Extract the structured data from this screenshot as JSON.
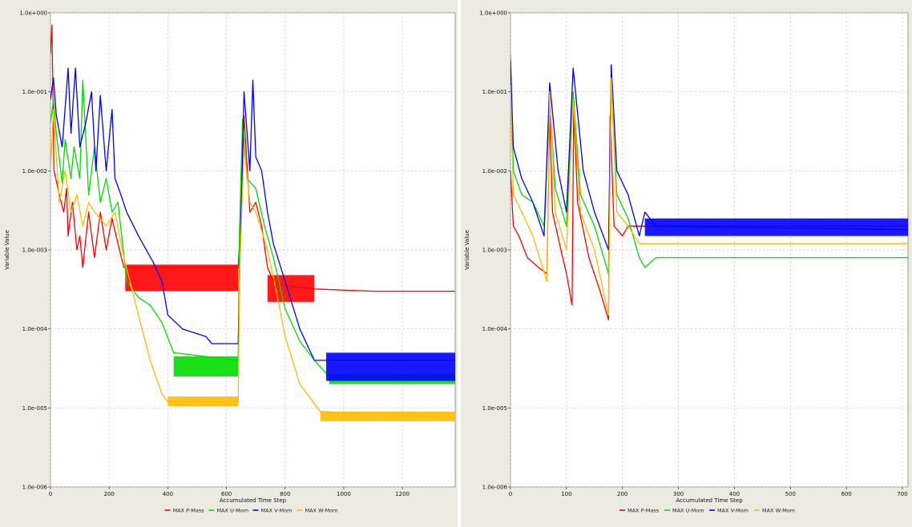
{
  "colors": {
    "frame": "#ecebe1",
    "plot_bg": "#ffffff",
    "grid": "#c4c4c4",
    "p_mass": "#ff0000",
    "u_mom": "#00dd00",
    "v_mom": "#0000ff",
    "w_mom": "#ffbb00"
  },
  "chart_data": [
    {
      "type": "line",
      "title": "",
      "xlabel": "Accumulated Time Step",
      "ylabel": "Variable Value",
      "yscale": "log",
      "ylim": [
        1e-06,
        1
      ],
      "xlim": [
        0,
        1380
      ],
      "xticks": [
        0,
        200,
        400,
        600,
        800,
        1000,
        1200
      ],
      "yticks": [
        1,
        0.1,
        0.01,
        0.001,
        0.0001,
        1e-05,
        1e-06
      ],
      "ytick_labels": [
        "1.0e+000",
        "1.0e-001",
        "1.0e-002",
        "1.0e-003",
        "1.0e-004",
        "1.0e-005",
        "1.0e-006"
      ],
      "grid": true,
      "legend_position": "bottom",
      "series": [
        {
          "name": "MAX P-Mass",
          "color_key": "p_mass",
          "points": [
            [
              0,
              0.3
            ],
            [
              5,
              0.7
            ],
            [
              12,
              0.01
            ],
            [
              30,
              0.005
            ],
            [
              45,
              0.003
            ],
            [
              55,
              0.006
            ],
            [
              60,
              0.0015
            ],
            [
              75,
              0.004
            ],
            [
              90,
              0.001
            ],
            [
              100,
              0.0015
            ],
            [
              110,
              0.0006
            ],
            [
              130,
              0.003
            ],
            [
              150,
              0.0008
            ],
            [
              170,
              0.003
            ],
            [
              190,
              0.001
            ],
            [
              210,
              0.0025
            ],
            [
              230,
              0.0012
            ],
            [
              250,
              0.0006
            ],
            [
              640,
              0.0006
            ],
            [
              650,
              0.003
            ],
            [
              660,
              0.05
            ],
            [
              680,
              0.003
            ],
            [
              700,
              0.004
            ],
            [
              720,
              0.002
            ],
            [
              740,
              0.0006
            ],
            [
              760,
              0.0004
            ],
            [
              800,
              0.00035
            ],
            [
              900,
              0.00032
            ],
            [
              1100,
              0.0003
            ],
            [
              1380,
              0.0003
            ]
          ],
          "bands": [
            {
              "x": [
                255,
                640
              ],
              "y": [
                0.0003,
                0.00065
              ]
            },
            {
              "x": [
                740,
                900
              ],
              "y": [
                0.00022,
                0.00048
              ]
            }
          ]
        },
        {
          "name": "MAX U-Mom",
          "color_key": "u_mom",
          "points": [
            [
              0,
              0.04
            ],
            [
              10,
              0.08
            ],
            [
              20,
              0.03
            ],
            [
              40,
              0.007
            ],
            [
              50,
              0.025
            ],
            [
              70,
              0.008
            ],
            [
              80,
              0.02
            ],
            [
              100,
              0.008
            ],
            [
              110,
              0.14
            ],
            [
              130,
              0.005
            ],
            [
              150,
              0.02
            ],
            [
              170,
              0.004
            ],
            [
              190,
              0.008
            ],
            [
              210,
              0.003
            ],
            [
              230,
              0.004
            ],
            [
              260,
              0.0004
            ],
            [
              300,
              0.00025
            ],
            [
              340,
              0.0002
            ],
            [
              380,
              0.00012
            ],
            [
              420,
              5e-05
            ],
            [
              640,
              4e-05
            ],
            [
              645,
              0.002
            ],
            [
              655,
              0.045
            ],
            [
              670,
              0.008
            ],
            [
              700,
              0.006
            ],
            [
              730,
              0.002
            ],
            [
              760,
              0.0008
            ],
            [
              800,
              0.00018
            ],
            [
              850,
              7e-05
            ],
            [
              900,
              4e-05
            ],
            [
              950,
              2.5e-05
            ],
            [
              1380,
              2.5e-05
            ]
          ],
          "bands": [
            {
              "x": [
                420,
                640
              ],
              "y": [
                2.5e-05,
                4.5e-05
              ]
            },
            {
              "x": [
                950,
                1380
              ],
              "y": [
                2e-05,
                2.7e-05
              ]
            }
          ]
        },
        {
          "name": "MAX V-Mom",
          "color_key": "v_mom",
          "points": [
            [
              0,
              0.08
            ],
            [
              10,
              0.15
            ],
            [
              20,
              0.05
            ],
            [
              40,
              0.02
            ],
            [
              60,
              0.2
            ],
            [
              70,
              0.03
            ],
            [
              85,
              0.2
            ],
            [
              100,
              0.02
            ],
            [
              120,
              0.04
            ],
            [
              140,
              0.1
            ],
            [
              155,
              0.01
            ],
            [
              170,
              0.09
            ],
            [
              190,
              0.01
            ],
            [
              210,
              0.06
            ],
            [
              220,
              0.008
            ],
            [
              240,
              0.005
            ],
            [
              260,
              0.003
            ],
            [
              300,
              0.0015
            ],
            [
              350,
              0.0007
            ],
            [
              380,
              0.0004
            ],
            [
              400,
              0.00015
            ],
            [
              450,
              0.0001
            ],
            [
              530,
              8e-05
            ],
            [
              550,
              6.5e-05
            ],
            [
              640,
              6.5e-05
            ],
            [
              650,
              0.003
            ],
            [
              660,
              0.1
            ],
            [
              680,
              0.01
            ],
            [
              690,
              0.14
            ],
            [
              700,
              0.015
            ],
            [
              720,
              0.01
            ],
            [
              740,
              0.003
            ],
            [
              760,
              0.0012
            ],
            [
              800,
              0.0004
            ],
            [
              850,
              0.0001
            ],
            [
              900,
              4e-05
            ],
            [
              1380,
              4e-05
            ]
          ],
          "bands": [
            {
              "x": [
                940,
                1380
              ],
              "y": [
                2.2e-05,
                5e-05
              ]
            }
          ]
        },
        {
          "name": "MAX W-Mom",
          "color_key": "w_mom",
          "points": [
            [
              0,
              0.01
            ],
            [
              10,
              0.06
            ],
            [
              30,
              0.004
            ],
            [
              50,
              0.01
            ],
            [
              70,
              0.003
            ],
            [
              90,
              0.005
            ],
            [
              110,
              0.002
            ],
            [
              130,
              0.004
            ],
            [
              150,
              0.003
            ],
            [
              170,
              0.0025
            ],
            [
              190,
              0.002
            ],
            [
              220,
              0.003
            ],
            [
              250,
              0.0008
            ],
            [
              300,
              0.00015
            ],
            [
              340,
              4e-05
            ],
            [
              380,
              1.5e-05
            ],
            [
              400,
              1.2e-05
            ],
            [
              640,
              1.2e-05
            ],
            [
              645,
              0.0005
            ],
            [
              660,
              0.02
            ],
            [
              680,
              0.004
            ],
            [
              700,
              0.003
            ],
            [
              740,
              0.001
            ],
            [
              770,
              0.0003
            ],
            [
              800,
              8e-05
            ],
            [
              850,
              2e-05
            ],
            [
              920,
              9e-06
            ],
            [
              1380,
              7.5e-06
            ]
          ],
          "bands": [
            {
              "x": [
                400,
                640
              ],
              "y": [
                1.05e-05,
                1.4e-05
              ]
            },
            {
              "x": [
                920,
                1380
              ],
              "y": [
                6.8e-06,
                9e-06
              ]
            }
          ]
        }
      ]
    },
    {
      "type": "line",
      "title": "",
      "xlabel": "Accumulated Time Step",
      "ylabel": "Variable Value",
      "yscale": "log",
      "ylim": [
        1e-06,
        1
      ],
      "xlim": [
        0,
        710
      ],
      "xticks": [
        0,
        100,
        200,
        300,
        400,
        500,
        600,
        700
      ],
      "yticks": [
        1,
        0.1,
        0.01,
        0.001,
        0.0001,
        1e-05,
        1e-06
      ],
      "ytick_labels": [
        "1.0e+000",
        "1.0e-001",
        "1.0e-002",
        "1.0e-003",
        "1.0e-004",
        "1.0e-005",
        "1.0e-006"
      ],
      "grid": true,
      "legend_position": "bottom",
      "series": [
        {
          "name": "MAX P-Mass",
          "color_key": "p_mass",
          "points": [
            [
              0,
              0.01
            ],
            [
              5,
              0.002
            ],
            [
              15,
              0.0015
            ],
            [
              30,
              0.0008
            ],
            [
              50,
              0.0006
            ],
            [
              65,
              0.0005
            ],
            [
              70,
              0.05
            ],
            [
              75,
              0.003
            ],
            [
              90,
              0.001
            ],
            [
              100,
              0.0005
            ],
            [
              110,
              0.0002
            ],
            [
              113,
              0.06
            ],
            [
              120,
              0.004
            ],
            [
              140,
              0.0008
            ],
            [
              160,
              0.0003
            ],
            [
              175,
              0.00013
            ],
            [
              178,
              0.05
            ],
            [
              185,
              0.002
            ],
            [
              200,
              0.0015
            ],
            [
              210,
              0.002
            ],
            [
              230,
              0.002
            ],
            [
              710,
              0.002
            ]
          ],
          "bands": []
        },
        {
          "name": "MAX U-Mom",
          "color_key": "u_mom",
          "points": [
            [
              0,
              0.3
            ],
            [
              5,
              0.01
            ],
            [
              20,
              0.005
            ],
            [
              40,
              0.004
            ],
            [
              60,
              0.002
            ],
            [
              70,
              0.08
            ],
            [
              80,
              0.006
            ],
            [
              100,
              0.002
            ],
            [
              112,
              0.1
            ],
            [
              125,
              0.005
            ],
            [
              150,
              0.002
            ],
            [
              175,
              0.0005
            ],
            [
              180,
              0.12
            ],
            [
              190,
              0.005
            ],
            [
              210,
              0.0025
            ],
            [
              230,
              0.0008
            ],
            [
              240,
              0.0006
            ],
            [
              260,
              0.0008
            ],
            [
              710,
              0.0008
            ]
          ],
          "bands": []
        },
        {
          "name": "MAX V-Mom",
          "color_key": "v_mom",
          "points": [
            [
              0,
              0.25
            ],
            [
              5,
              0.02
            ],
            [
              20,
              0.008
            ],
            [
              40,
              0.004
            ],
            [
              60,
              0.0015
            ],
            [
              70,
              0.13
            ],
            [
              85,
              0.01
            ],
            [
              100,
              0.003
            ],
            [
              112,
              0.2
            ],
            [
              130,
              0.01
            ],
            [
              150,
              0.003
            ],
            [
              175,
              0.001
            ],
            [
              180,
              0.22
            ],
            [
              190,
              0.01
            ],
            [
              210,
              0.005
            ],
            [
              230,
              0.0015
            ],
            [
              240,
              0.003
            ],
            [
              260,
              0.002
            ],
            [
              710,
              0.0018
            ]
          ],
          "bands": [
            {
              "x": [
                240,
                710
              ],
              "y": [
                0.0015,
                0.0025
              ]
            }
          ]
        },
        {
          "name": "MAX W-Mom",
          "color_key": "w_mom",
          "points": [
            [
              0,
              0.12
            ],
            [
              5,
              0.005
            ],
            [
              20,
              0.003
            ],
            [
              40,
              0.0015
            ],
            [
              65,
              0.0004
            ],
            [
              70,
              0.1
            ],
            [
              80,
              0.003
            ],
            [
              100,
              0.001
            ],
            [
              112,
              0.08
            ],
            [
              125,
              0.003
            ],
            [
              150,
              0.001
            ],
            [
              175,
              0.00015
            ],
            [
              180,
              0.15
            ],
            [
              190,
              0.003
            ],
            [
              210,
              0.002
            ],
            [
              230,
              0.0012
            ],
            [
              710,
              0.0012
            ]
          ],
          "bands": []
        }
      ]
    }
  ]
}
